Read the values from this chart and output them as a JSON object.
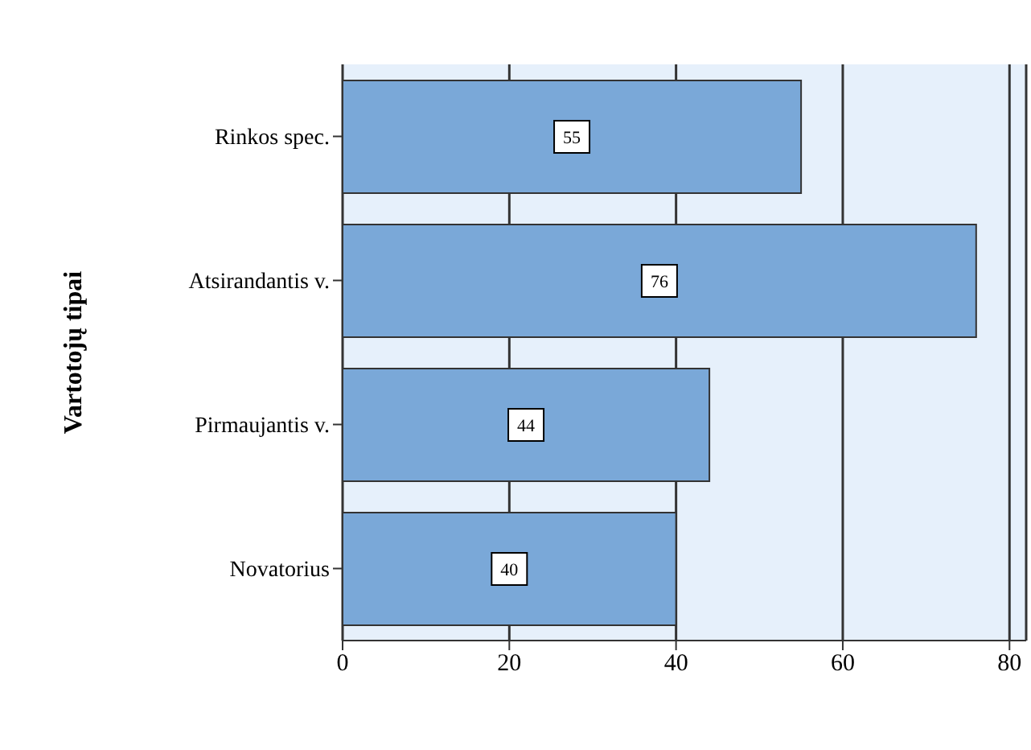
{
  "chart_data": {
    "type": "bar",
    "orientation": "horizontal",
    "ylabel": "Vartotojų tipai",
    "categories": [
      "Rinkos spec.",
      "Atsirandantis v.",
      "Pirmaujantis v.",
      "Novatorius"
    ],
    "values": [
      55,
      76,
      44,
      40
    ],
    "color": "#7aa8d8",
    "xlim": [
      0,
      82
    ],
    "xticks": [
      0,
      20,
      40,
      60,
      80
    ],
    "grid": "x",
    "data_labels": true
  }
}
